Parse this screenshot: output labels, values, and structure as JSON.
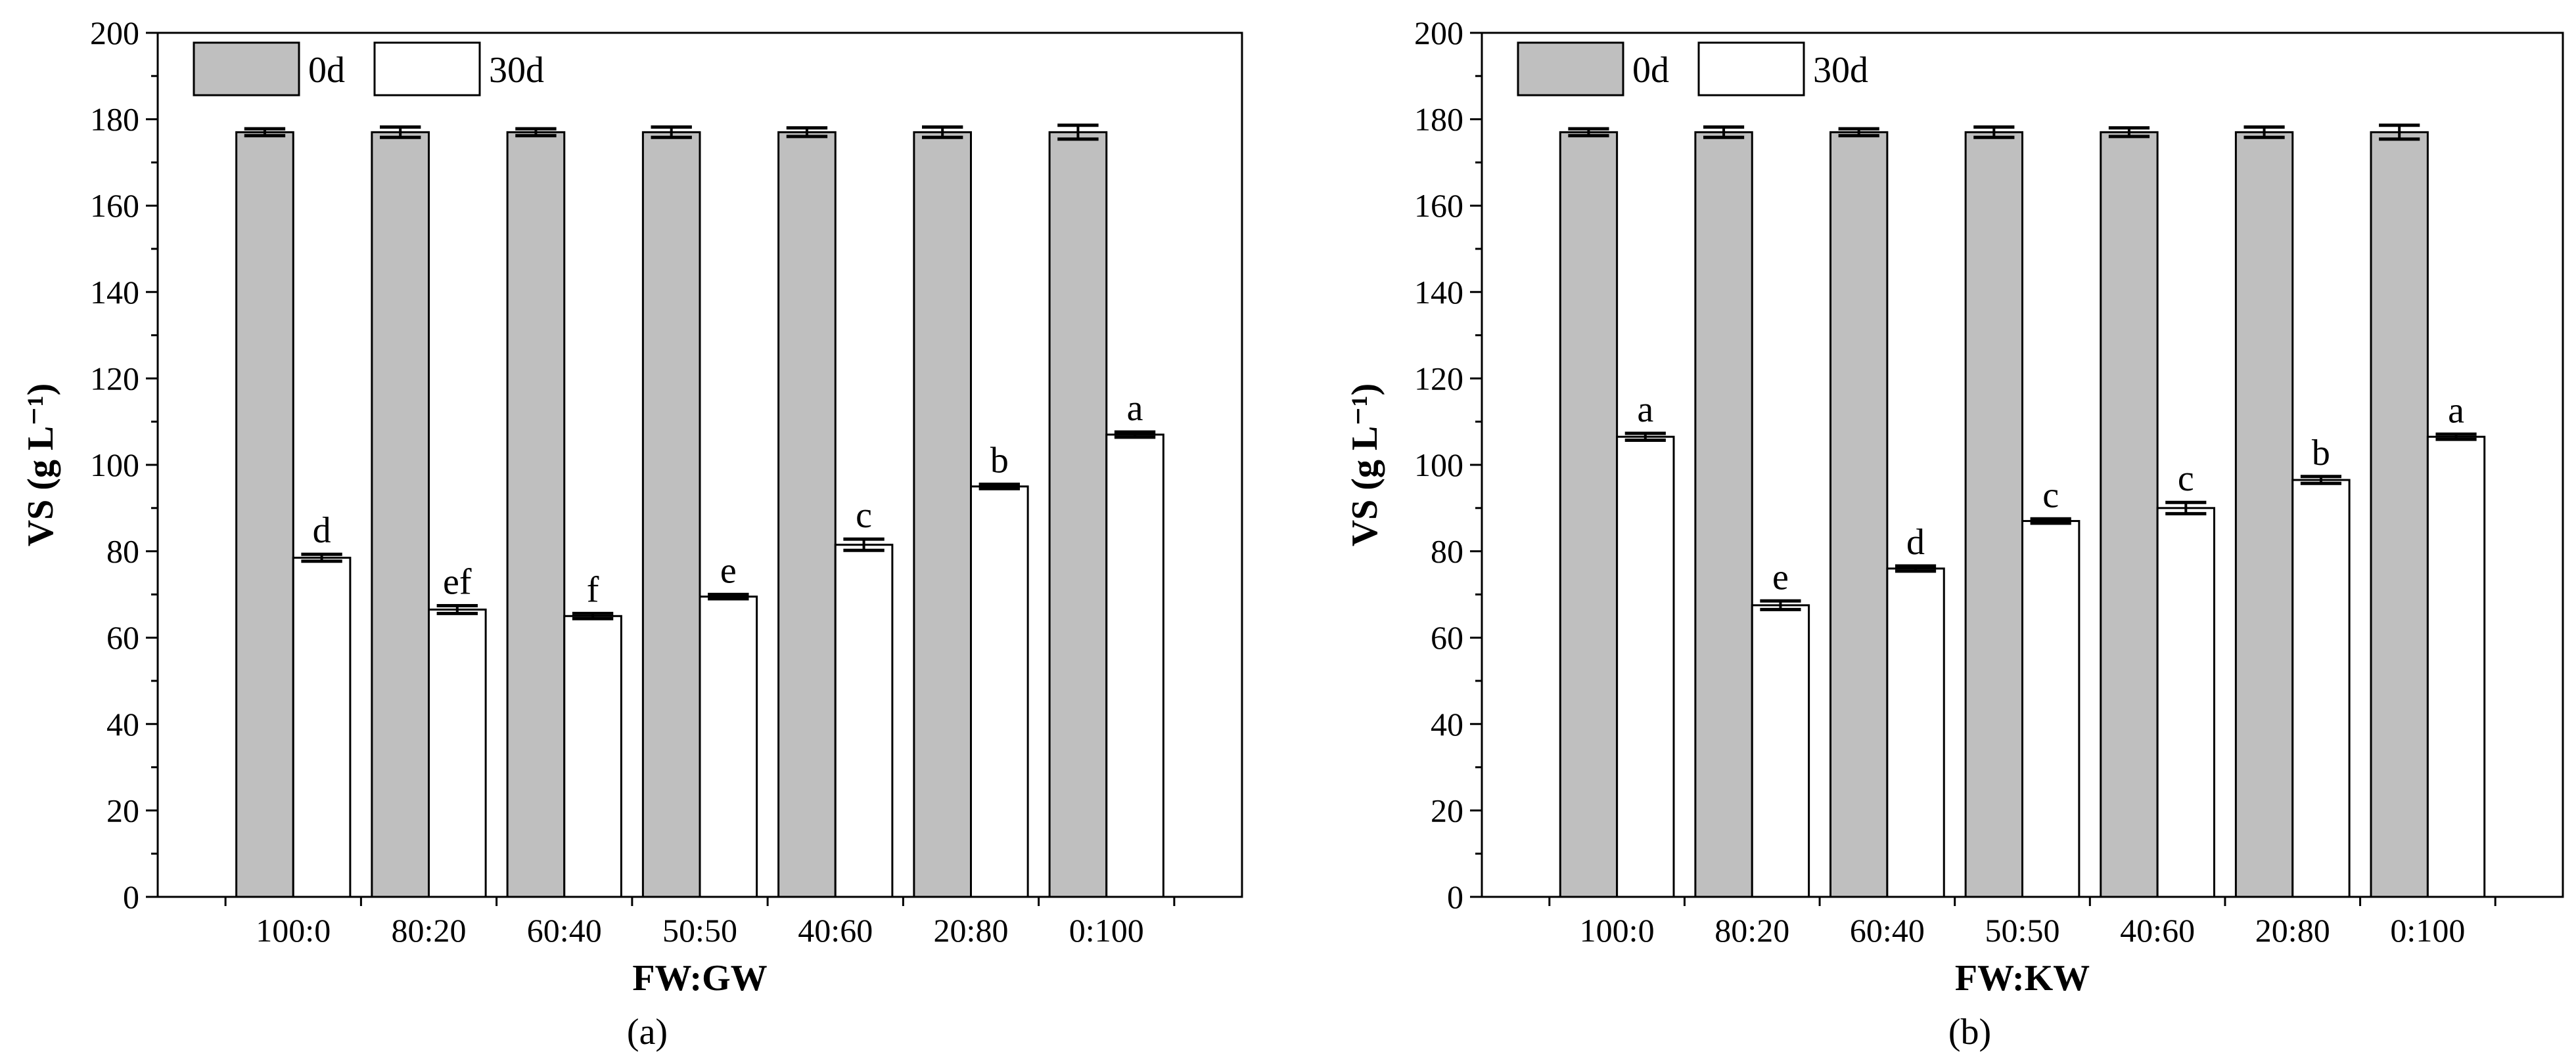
{
  "colors": {
    "series_0d": "#bfbfbf",
    "series_30d": "#ffffff",
    "stroke": "#000000"
  },
  "chart_data": [
    {
      "type": "bar",
      "panel_label": "(a)",
      "xlabel": "FW:GW",
      "ylabel": "VS (g L⁻¹)",
      "ylim": [
        0,
        200
      ],
      "yticks": [
        0,
        20,
        40,
        60,
        80,
        100,
        120,
        140,
        160,
        180,
        200
      ],
      "categories": [
        "100:0",
        "80:20",
        "60:40",
        "50:50",
        "40:60",
        "20:80",
        "0:100"
      ],
      "legend_position": "top-left",
      "grid": false,
      "series": [
        {
          "name": "0d",
          "values": [
            177,
            177,
            177,
            177,
            177,
            177,
            177
          ],
          "errors": [
            0.8,
            1.2,
            0.8,
            1.2,
            1.0,
            1.2,
            1.6
          ]
        },
        {
          "name": "30d",
          "values": [
            78.5,
            66.5,
            65,
            69.5,
            81.5,
            95,
            107
          ],
          "errors": [
            0.8,
            0.9,
            0.6,
            0.5,
            1.3,
            0.5,
            0.6
          ],
          "labels": [
            "d",
            "ef",
            "f",
            "e",
            "c",
            "b",
            "a"
          ]
        }
      ]
    },
    {
      "type": "bar",
      "panel_label": "(b)",
      "xlabel": "FW:KW",
      "ylabel": "VS (g L⁻¹)",
      "ylim": [
        0,
        200
      ],
      "yticks": [
        0,
        20,
        40,
        60,
        80,
        100,
        120,
        140,
        160,
        180,
        200
      ],
      "categories": [
        "100:0",
        "80:20",
        "60:40",
        "50:50",
        "40:60",
        "20:80",
        "0:100"
      ],
      "legend_position": "top-left",
      "grid": false,
      "series": [
        {
          "name": "0d",
          "values": [
            177,
            177,
            177,
            177,
            177,
            177,
            177
          ],
          "errors": [
            0.8,
            1.2,
            0.8,
            1.2,
            1.0,
            1.2,
            1.6
          ]
        },
        {
          "name": "30d",
          "values": [
            106.5,
            67.5,
            76,
            87,
            90,
            96.5,
            106.5
          ],
          "errors": [
            0.8,
            1.0,
            0.6,
            0.5,
            1.3,
            0.8,
            0.6
          ],
          "labels": [
            "a",
            "e",
            "d",
            "c",
            "c",
            "b",
            "a"
          ]
        }
      ]
    }
  ]
}
